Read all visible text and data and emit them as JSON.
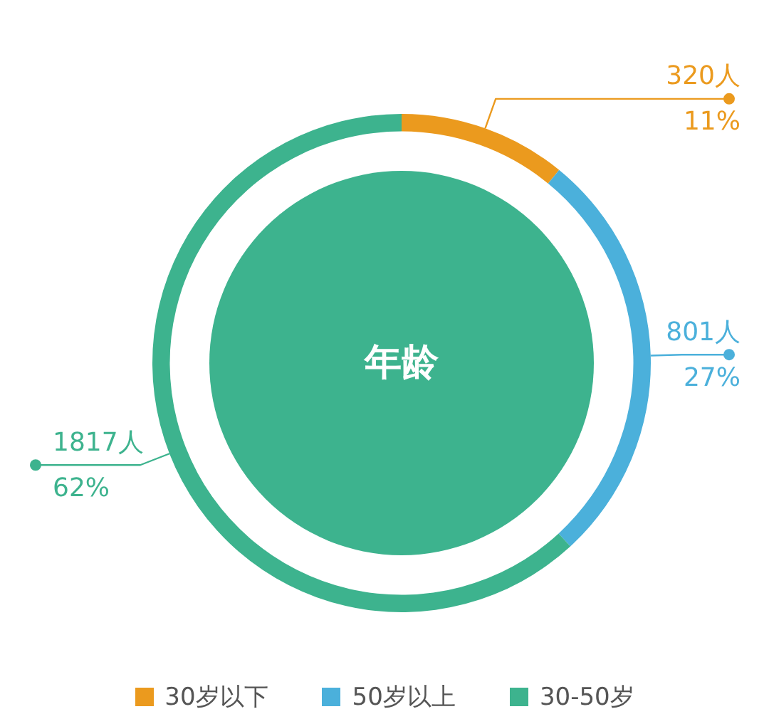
{
  "chart_data": {
    "type": "donut",
    "title": "年龄",
    "categories": [
      "30岁以下",
      "50岁以上",
      "30-50岁"
    ],
    "values": [
      320,
      801,
      1817
    ],
    "colors": [
      "#eb9a1e",
      "#4bb0db",
      "#3db38e"
    ],
    "value_labels": [
      "320人\n11%",
      "801人\n27%",
      "1817人\n62%"
    ],
    "legend": "bottom"
  }
}
